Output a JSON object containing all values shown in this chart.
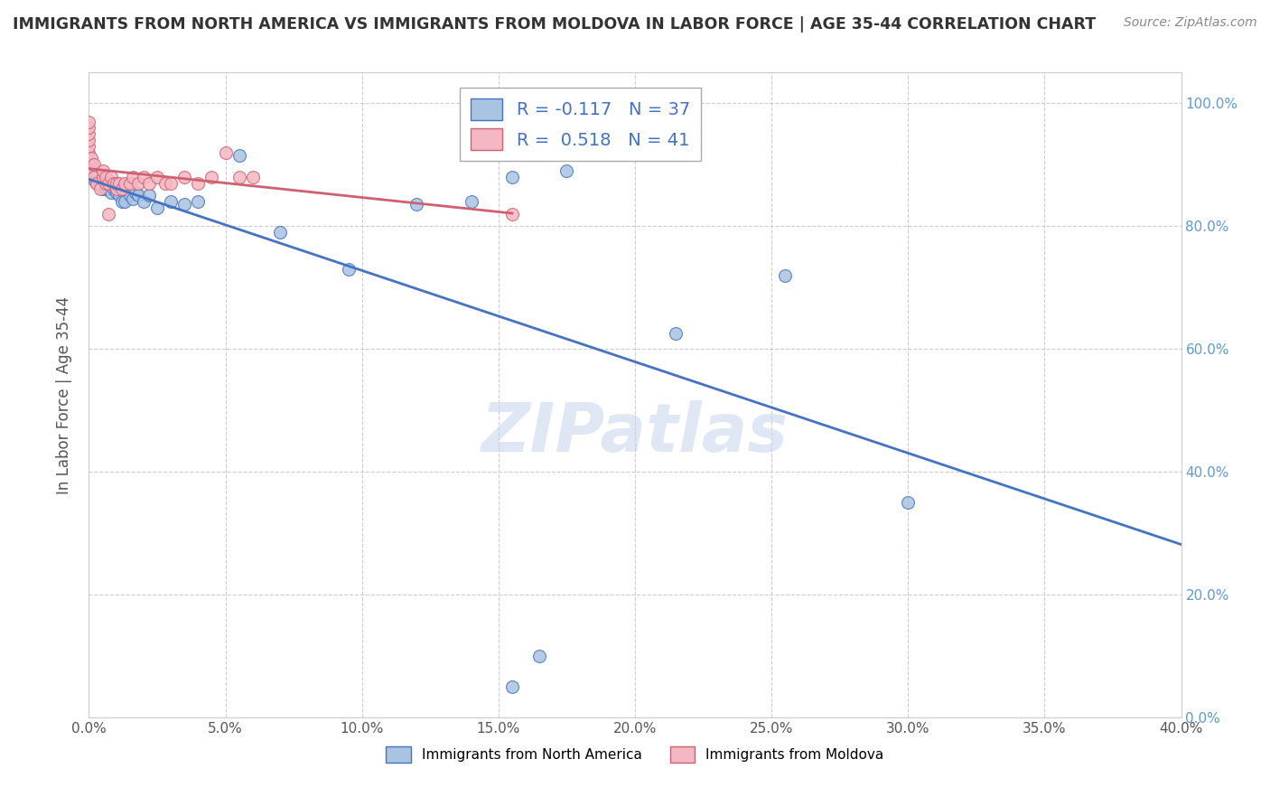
{
  "title": "IMMIGRANTS FROM NORTH AMERICA VS IMMIGRANTS FROM MOLDOVA IN LABOR FORCE | AGE 35-44 CORRELATION CHART",
  "source": "Source: ZipAtlas.com",
  "ylabel": "In Labor Force | Age 35-44",
  "xlim": [
    0.0,
    0.4
  ],
  "ylim": [
    0.0,
    1.05
  ],
  "blue_color": "#a8c4e0",
  "blue_line_color": "#4472c4",
  "pink_color": "#f4b8c4",
  "pink_line_color": "#d06070",
  "R_blue": -0.117,
  "N_blue": 37,
  "R_pink": 0.518,
  "N_pink": 41,
  "legend_label_blue": "Immigrants from North America",
  "legend_label_pink": "Immigrants from Moldova",
  "blue_scatter_x": [
    0.001,
    0.002,
    0.003,
    0.003,
    0.004,
    0.005,
    0.006,
    0.007,
    0.007,
    0.008,
    0.009,
    0.01,
    0.011,
    0.012,
    0.013,
    0.015,
    0.016,
    0.017,
    0.018,
    0.02,
    0.022,
    0.025,
    0.03,
    0.035,
    0.04,
    0.055,
    0.07,
    0.095,
    0.12,
    0.14,
    0.155,
    0.175,
    0.215,
    0.255,
    0.3,
    0.155,
    0.165
  ],
  "blue_scatter_y": [
    0.89,
    0.875,
    0.87,
    0.88,
    0.87,
    0.86,
    0.86,
    0.87,
    0.86,
    0.855,
    0.86,
    0.855,
    0.85,
    0.84,
    0.84,
    0.85,
    0.845,
    0.855,
    0.85,
    0.84,
    0.85,
    0.83,
    0.84,
    0.835,
    0.84,
    0.915,
    0.79,
    0.73,
    0.835,
    0.84,
    0.88,
    0.89,
    0.625,
    0.72,
    0.35,
    0.05,
    0.1
  ],
  "pink_scatter_x": [
    0.0,
    0.0,
    0.0,
    0.0,
    0.0,
    0.0,
    0.001,
    0.001,
    0.001,
    0.002,
    0.002,
    0.003,
    0.004,
    0.005,
    0.005,
    0.006,
    0.006,
    0.007,
    0.007,
    0.008,
    0.009,
    0.01,
    0.01,
    0.011,
    0.012,
    0.013,
    0.015,
    0.016,
    0.018,
    0.02,
    0.022,
    0.025,
    0.028,
    0.03,
    0.035,
    0.04,
    0.045,
    0.05,
    0.055,
    0.06,
    0.155
  ],
  "pink_scatter_y": [
    0.92,
    0.93,
    0.94,
    0.95,
    0.96,
    0.97,
    0.9,
    0.91,
    0.89,
    0.88,
    0.9,
    0.87,
    0.86,
    0.88,
    0.89,
    0.87,
    0.88,
    0.82,
    0.87,
    0.88,
    0.87,
    0.86,
    0.87,
    0.87,
    0.86,
    0.87,
    0.87,
    0.88,
    0.87,
    0.88,
    0.87,
    0.88,
    0.87,
    0.87,
    0.88,
    0.87,
    0.88,
    0.92,
    0.88,
    0.88,
    0.82
  ],
  "watermark": "ZIPatlas",
  "background_color": "#ffffff",
  "grid_color": "#cccccc",
  "marker_size": 100,
  "right_ytick_vals": [
    0.0,
    0.2,
    0.4,
    0.6,
    0.8,
    1.0
  ],
  "right_ytick_labels": [
    "0.0%",
    "20.0%",
    "40.0%",
    "60.0%",
    "80.0%",
    "100.0%"
  ]
}
